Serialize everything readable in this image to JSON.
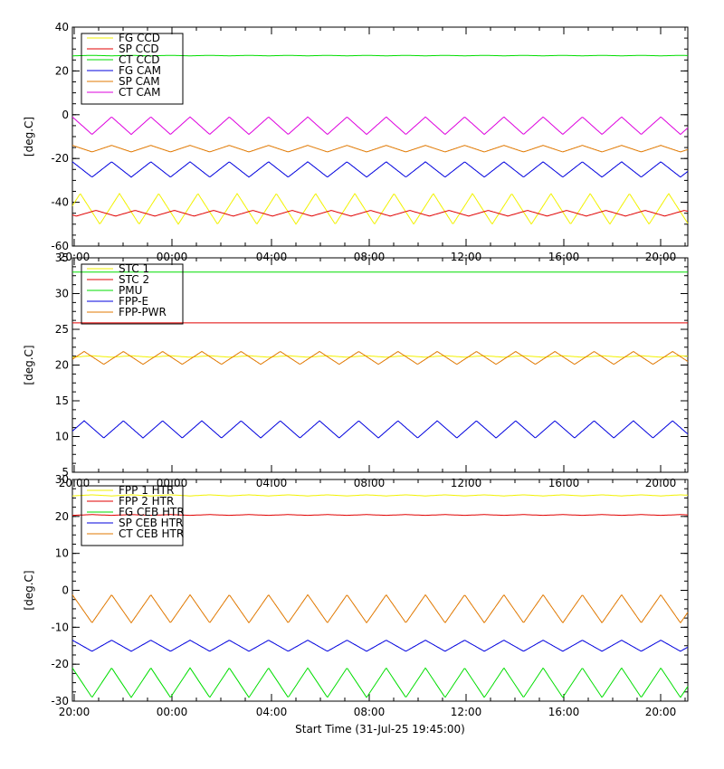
{
  "figure": {
    "xlabel": "Start Time (31-Jul-25 19:45:00)"
  },
  "colors": {
    "yellow": "#f2f200",
    "red": "#e00000",
    "green": "#00dd00",
    "blue": "#0000dd",
    "orange": "#e07800",
    "magenta": "#dd00dd",
    "axis": "#000000"
  },
  "chart_data": [
    {
      "type": "line",
      "ylabel": "[deg.C]",
      "ylim": [
        -60,
        40
      ],
      "yticks": [
        40,
        20,
        0,
        -20,
        -40,
        -60
      ],
      "xlim": [
        0,
        25.1
      ],
      "xtick_labels": [
        "20:00",
        "00:00",
        "04:00",
        "08:00",
        "12:00",
        "16:00",
        "20:00"
      ],
      "legend_position": "top-left",
      "series": [
        {
          "name": "FG CCD",
          "color": "yellow",
          "base": -43,
          "amplitude": 7,
          "period": 1.6,
          "phase": 0.3
        },
        {
          "name": "SP CCD",
          "color": "red",
          "base": -45,
          "amplitude": 1.3,
          "period": 1.6,
          "phase": 0.9
        },
        {
          "name": "CT CCD",
          "color": "green",
          "base": 27,
          "amplitude": 0.1,
          "period": 1.6,
          "phase": 0
        },
        {
          "name": "FG CAM",
          "color": "blue",
          "base": -25,
          "amplitude": 3.5,
          "period": 1.6,
          "phase": 0.5
        },
        {
          "name": "SP CAM",
          "color": "orange",
          "base": -15.5,
          "amplitude": 1.5,
          "period": 1.6,
          "phase": 0.5
        },
        {
          "name": "CT CAM",
          "color": "magenta",
          "base": -5,
          "amplitude": 4,
          "period": 1.6,
          "phase": 0.5
        }
      ]
    },
    {
      "type": "line",
      "ylabel": "[deg.C]",
      "ylim": [
        5,
        35
      ],
      "yticks": [
        35,
        30,
        25,
        20,
        15,
        10,
        5
      ],
      "xlim": [
        0,
        25.1
      ],
      "xtick_labels": [
        "20:00",
        "00:00",
        "04:00",
        "08:00",
        "12:00",
        "16:00",
        "20:00"
      ],
      "legend_position": "top-left",
      "series": [
        {
          "name": "STC 1",
          "color": "yellow",
          "base": 21.2,
          "amplitude": 0.1,
          "period": 1.6,
          "phase": 0
        },
        {
          "name": "STC 2",
          "color": "red",
          "base": 25.9,
          "amplitude": 0,
          "period": 1.6,
          "phase": 0
        },
        {
          "name": "PMU",
          "color": "green",
          "base": 33,
          "amplitude": 0,
          "period": 1.6,
          "phase": 0
        },
        {
          "name": "FPP-E",
          "color": "blue",
          "base": 11,
          "amplitude": 1.2,
          "period": 1.6,
          "phase": 0.2
        },
        {
          "name": "FPP-PWR",
          "color": "orange",
          "base": 21,
          "amplitude": 0.9,
          "period": 1.6,
          "phase": 0.2
        }
      ]
    },
    {
      "type": "line",
      "ylabel": "[deg.C]",
      "ylim": [
        -30,
        30
      ],
      "yticks": [
        30,
        20,
        10,
        0,
        -10,
        -20,
        -30
      ],
      "xlim": [
        0,
        25.1
      ],
      "xtick_labels": [
        "20:00",
        "00:00",
        "04:00",
        "08:00",
        "12:00",
        "16:00",
        "20:00"
      ],
      "legend_position": "top-left",
      "series": [
        {
          "name": "FPP 1 HTR",
          "color": "yellow",
          "base": 25.7,
          "amplitude": 0.15,
          "period": 1.6,
          "phase": 0
        },
        {
          "name": "FPP 2 HTR",
          "color": "red",
          "base": 20.4,
          "amplitude": 0.1,
          "period": 1.6,
          "phase": 0
        },
        {
          "name": "FG CEB HTR",
          "color": "green",
          "base": -25,
          "amplitude": 4,
          "period": 1.6,
          "phase": 0.5
        },
        {
          "name": "SP CEB HTR",
          "color": "blue",
          "base": -15,
          "amplitude": 1.5,
          "period": 1.6,
          "phase": 0.5
        },
        {
          "name": "CT CEB HTR",
          "color": "orange",
          "base": -5,
          "amplitude": 3.8,
          "period": 1.6,
          "phase": 0.5
        }
      ]
    }
  ]
}
